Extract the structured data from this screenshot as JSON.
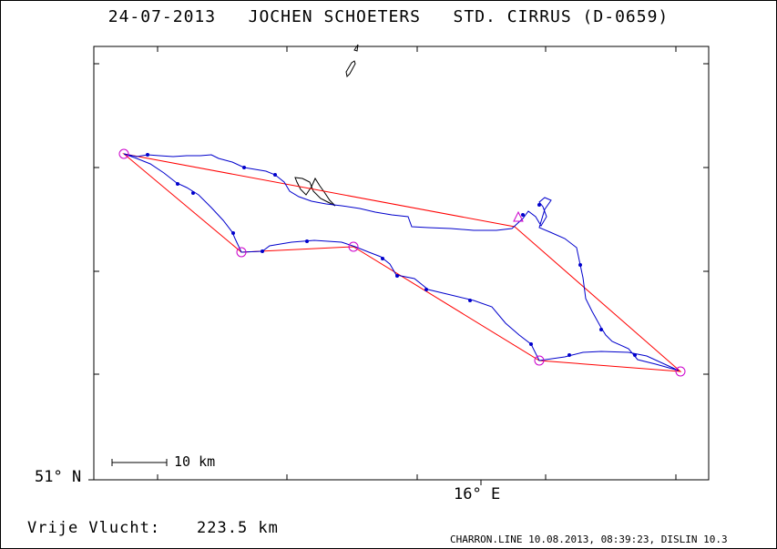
{
  "header": {
    "title": "24-07-2013   JOCHEN SCHOETERS   STD. CIRRUS (D-0659)"
  },
  "map": {
    "lat_label": "51° N",
    "lon_label": "16° E",
    "scale_label": "10 km",
    "colors": {
      "track": "#0000cc",
      "task": "#ff0000",
      "turnpoint": "#cc00cc",
      "frame": "#000000"
    }
  },
  "summary": {
    "distance_label": "Vrije Vlucht:",
    "distance_value": "223.5 km"
  },
  "footer": {
    "text": "CHARRON.LINE 10.08.2013, 08:39:23, DISLIN 10.3"
  }
}
